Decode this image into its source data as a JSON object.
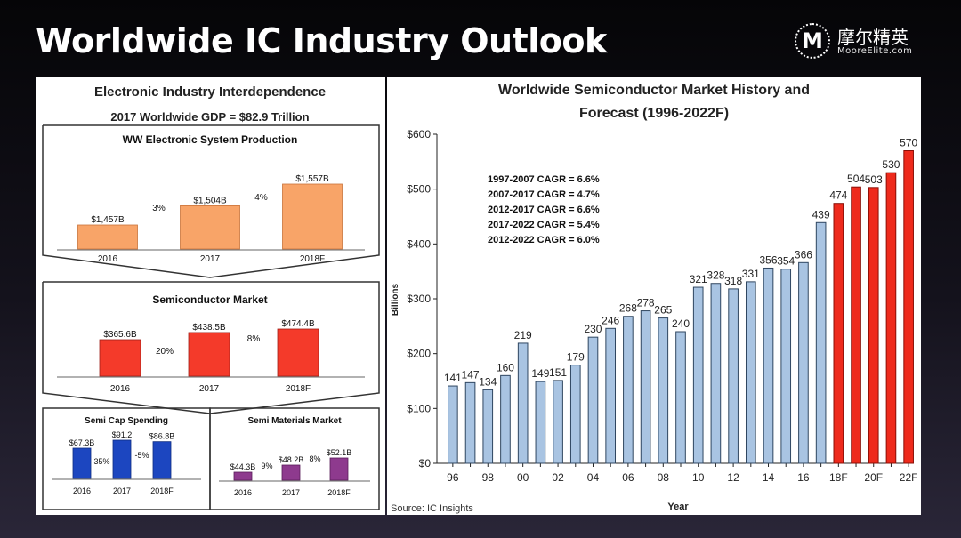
{
  "slide": {
    "title": "Worldwide IC Industry Outlook",
    "logo_mark": "M",
    "logo_cn": "摩尔精英",
    "logo_en": "MooreElite.com"
  },
  "left": {
    "title": "Electronic Industry Interdependence",
    "gdp": "2017 Worldwide GDP = $82.9 Trillion",
    "system": {
      "title": "WW Electronic System Production",
      "categories": [
        "2016",
        "2017",
        "2018F"
      ],
      "values": [
        1457,
        1504,
        1557
      ],
      "labels": [
        "$1,457B",
        "$1,504B",
        "$1,557B"
      ],
      "growth": [
        "3%",
        "4%"
      ],
      "color": "#f8a468"
    },
    "semi": {
      "title": "Semiconductor Market",
      "categories": [
        "2016",
        "2017",
        "2018F"
      ],
      "values": [
        365.6,
        438.5,
        474.4
      ],
      "labels": [
        "$365.6B",
        "$438.5B",
        "$474.4B"
      ],
      "growth": [
        "20%",
        "8%"
      ],
      "color": "#f43a2a"
    },
    "capex": {
      "title": "Semi Cap Spending",
      "categories": [
        "2016",
        "2017",
        "2018F"
      ],
      "values": [
        67.3,
        91.2,
        86.8
      ],
      "labels": [
        "$67.3B",
        "$91.2",
        "$86.8B"
      ],
      "growth": [
        "35%",
        "-5%"
      ],
      "color": "#1c46c0"
    },
    "materials": {
      "title": "Semi Materials Market",
      "categories": [
        "2016",
        "2017",
        "2018F"
      ],
      "values": [
        44.3,
        48.2,
        52.1
      ],
      "labels": [
        "$44.3B",
        "$48.2B",
        "$52.1B"
      ],
      "growth": [
        "9%",
        "8%"
      ],
      "color": "#8e3a8e"
    }
  },
  "chart_data": {
    "type": "bar",
    "title": "Worldwide Semiconductor Market History and",
    "title2": "Forecast (1996-2022F)",
    "xlabel": "Year",
    "ylabel": "Billions",
    "ylim": [
      0,
      600
    ],
    "yticks": [
      0,
      100,
      200,
      300,
      400,
      500,
      600
    ],
    "ytick_labels": [
      "$0",
      "$100",
      "$200",
      "$300",
      "$400",
      "$500",
      "$600"
    ],
    "categories": [
      "96",
      "97",
      "98",
      "99",
      "00",
      "01",
      "02",
      "03",
      "04",
      "05",
      "06",
      "07",
      "08",
      "09",
      "10",
      "11",
      "12",
      "13",
      "14",
      "15",
      "16",
      "17",
      "18F",
      "19F",
      "20F",
      "21F",
      "22F"
    ],
    "xtick_labels": [
      "96",
      "",
      "98",
      "",
      "00",
      "",
      "02",
      "",
      "04",
      "",
      "06",
      "",
      "08",
      "",
      "10",
      "",
      "12",
      "",
      "14",
      "",
      "16",
      "",
      "18F",
      "",
      "20F",
      "",
      "22F"
    ],
    "values": [
      141,
      147,
      134,
      160,
      219,
      149,
      151,
      179,
      230,
      246,
      268,
      278,
      265,
      240,
      321,
      328,
      318,
      331,
      356,
      354,
      366,
      439,
      474,
      504,
      503,
      530,
      570
    ],
    "forecast_start_index": 22,
    "colors": {
      "history": "#a9c4e2",
      "forecast": "#ee2a1c"
    },
    "annotations": [
      "1997-2007 CAGR = 6.6%",
      "2007-2017 CAGR = 4.7%",
      "2012-2017 CAGR = 6.6%",
      "2017-2022 CAGR = 5.4%",
      "2012-2022 CAGR = 6.0%"
    ],
    "source": "Source: IC Insights"
  }
}
